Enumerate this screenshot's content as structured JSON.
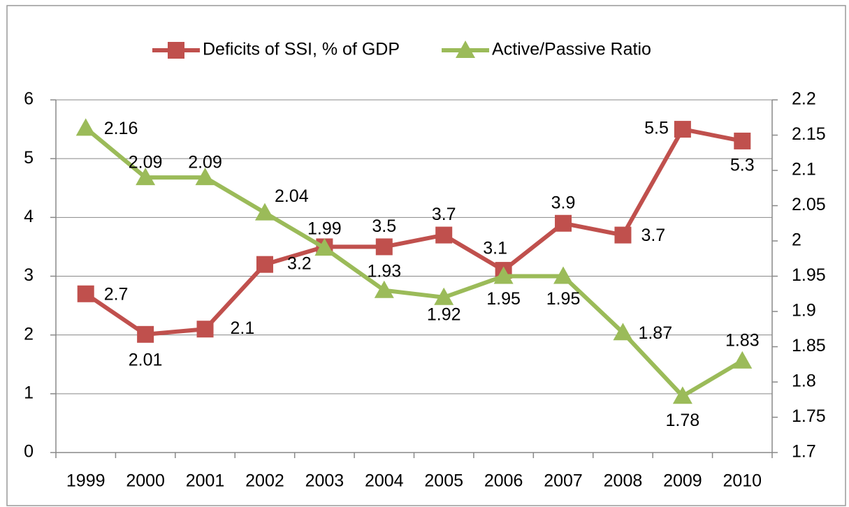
{
  "chart_data": {
    "type": "line",
    "categories": [
      "1999",
      "2000",
      "2001",
      "2002",
      "2003",
      "2004",
      "2005",
      "2006",
      "2007",
      "2008",
      "2009",
      "2010"
    ],
    "series": [
      {
        "name": "Deficits of SSI, % of GDP",
        "color": "#c0504d",
        "axis": "y",
        "values": [
          2.7,
          2.01,
          2.1,
          3.2,
          3.5,
          3.5,
          3.7,
          3.1,
          3.9,
          3.7,
          5.5,
          5.3
        ],
        "value_labels": [
          "2.7",
          "2.01",
          "2.1",
          "3.2",
          null,
          "3.5",
          "3.7",
          "3.1",
          "3.9",
          "3.7",
          "5.5",
          "5.3"
        ]
      },
      {
        "name": "Active/Passive Ratio",
        "color": "#9bbb59",
        "axis": "y2",
        "values": [
          2.16,
          2.09,
          2.09,
          2.04,
          1.99,
          1.93,
          1.92,
          1.95,
          1.95,
          1.87,
          1.78,
          1.83
        ]
      }
    ],
    "ylim": [
      0,
      6
    ],
    "yticks": [
      0,
      1,
      2,
      3,
      4,
      5,
      6
    ],
    "y2lim": [
      1.7,
      2.2
    ],
    "y2ticks": [
      1.7,
      1.75,
      1.8,
      1.85,
      1.9,
      1.95,
      2,
      2.05,
      2.1,
      2.15,
      2.2
    ],
    "grid": true,
    "legend": "top"
  }
}
